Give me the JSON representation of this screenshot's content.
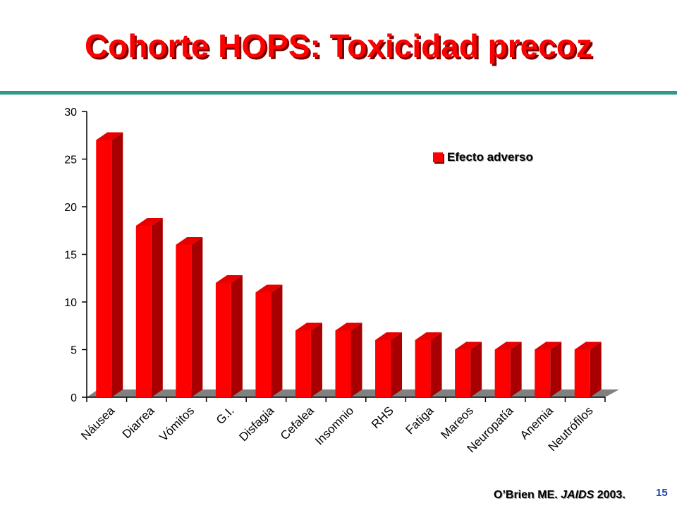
{
  "title": "Cohorte HOPS: Toxicidad precoz",
  "citation": {
    "authors": "O’Brien ME.",
    "journal": "JAIDS",
    "year": "2003."
  },
  "page_number": "15",
  "colors": {
    "title": "#ff0000",
    "rule": "#2e9a8a",
    "bar_front": "#ff0000",
    "bar_side": "#a80000",
    "bar_top": "#e80000",
    "floor": "#808080"
  },
  "chart_data": {
    "type": "bar",
    "categories": [
      "Náusea",
      "Diarrea",
      "Vómitos",
      "G.I.",
      "Disfagia",
      "Cefalea",
      "Insomnio",
      "RHS",
      "Fatiga",
      "Mareos",
      "Neuropatía",
      "Anemia",
      "Neutrófilos"
    ],
    "series": [
      {
        "name": "Efecto adverso",
        "values": [
          27,
          18,
          16,
          12,
          11,
          7,
          7,
          6,
          6,
          5,
          5,
          5,
          5
        ]
      }
    ],
    "ylim": [
      0,
      30
    ],
    "yticks": [
      "0",
      "5",
      "10",
      "15",
      "20",
      "25",
      "30"
    ],
    "legend_position": "top-right",
    "grid": false,
    "style": "3d"
  }
}
